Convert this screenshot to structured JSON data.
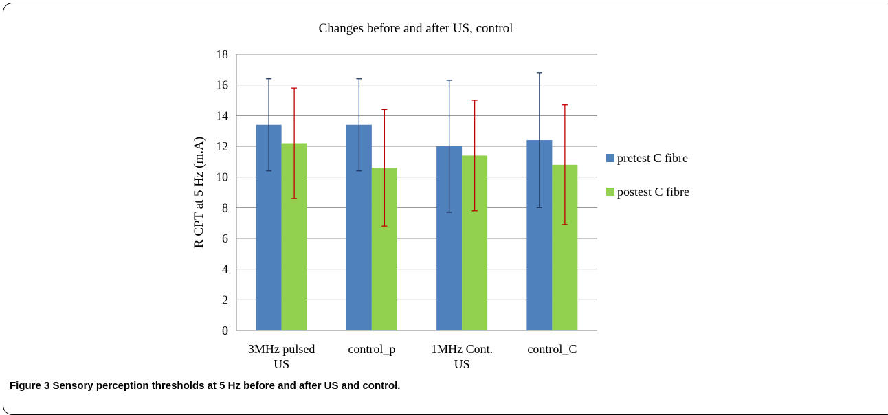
{
  "figure": {
    "label": "Figure 3",
    "caption": "Sensory perception thresholds at 5 Hz before and after US and control."
  },
  "chart_data": {
    "type": "bar",
    "title": "Changes before and after  US, control",
    "ylabel": "R CPT  at 5 Hz   (m.A)",
    "xlabel": "",
    "ylim": [
      0,
      18
    ],
    "yticks": [
      0,
      2,
      4,
      6,
      8,
      10,
      12,
      14,
      16,
      18
    ],
    "grid": true,
    "legend_position": "right",
    "categories": [
      [
        "3MHz pulsed",
        "US"
      ],
      [
        "control_p"
      ],
      [
        "1MHz Cont.",
        "US"
      ],
      [
        "control_C"
      ]
    ],
    "series": [
      {
        "name": "pretest C fibre",
        "color": "#4f81bd",
        "error_color": "#1f3864",
        "values": [
          13.4,
          13.4,
          12.0,
          12.4
        ],
        "error": [
          3.0,
          3.0,
          4.3,
          4.4
        ]
      },
      {
        "name": "postest C fibre",
        "color": "#92d050",
        "error_color": "#c00000",
        "values": [
          12.2,
          10.6,
          11.4,
          10.8
        ],
        "error": [
          3.6,
          3.8,
          3.6,
          3.9
        ]
      }
    ]
  }
}
